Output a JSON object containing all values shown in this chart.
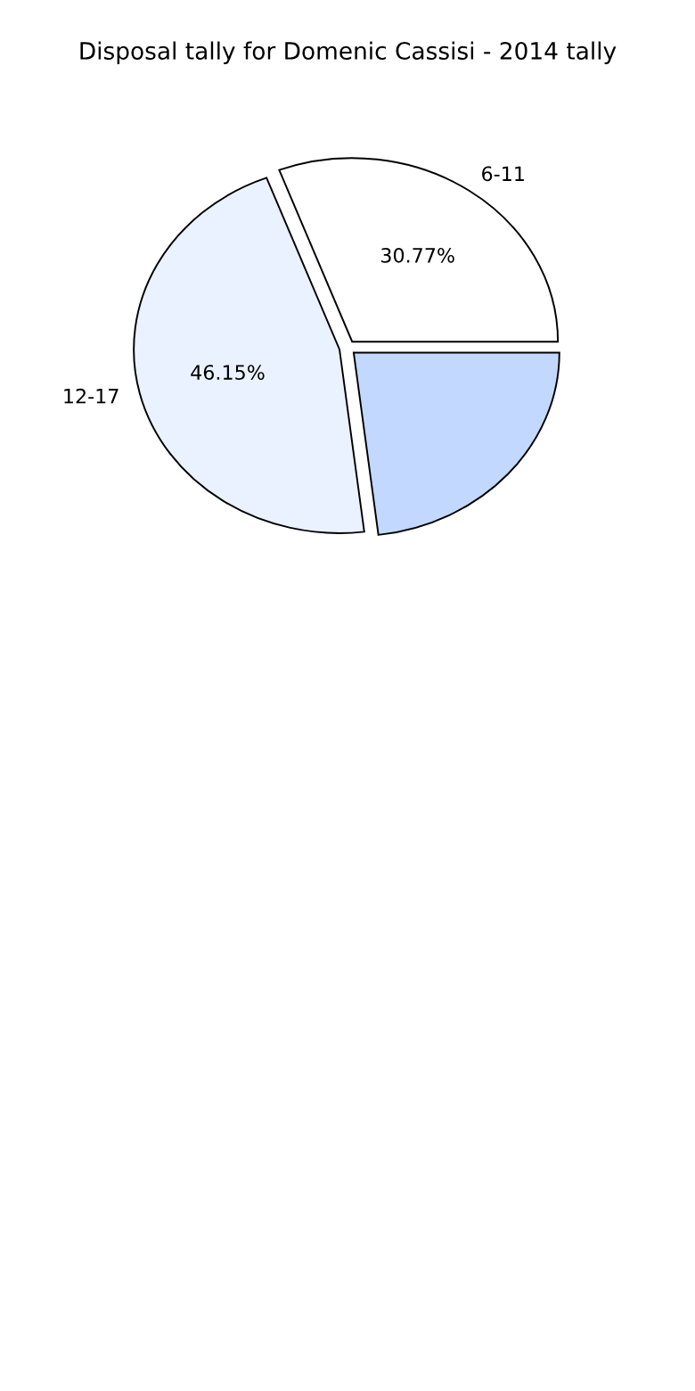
{
  "chart_data": {
    "type": "pie",
    "title": "Disposal tally for Domenic Cassisi - 2014 tally",
    "categories": [
      "6-11",
      "12-17",
      null
    ],
    "values": [
      30.77,
      46.15,
      23.08
    ],
    "colors": [
      "#ffffff",
      "#eaf1ff",
      "#c2d8ff"
    ],
    "value_labels": [
      "30.77%",
      "46.15%",
      null
    ],
    "legend": false
  }
}
